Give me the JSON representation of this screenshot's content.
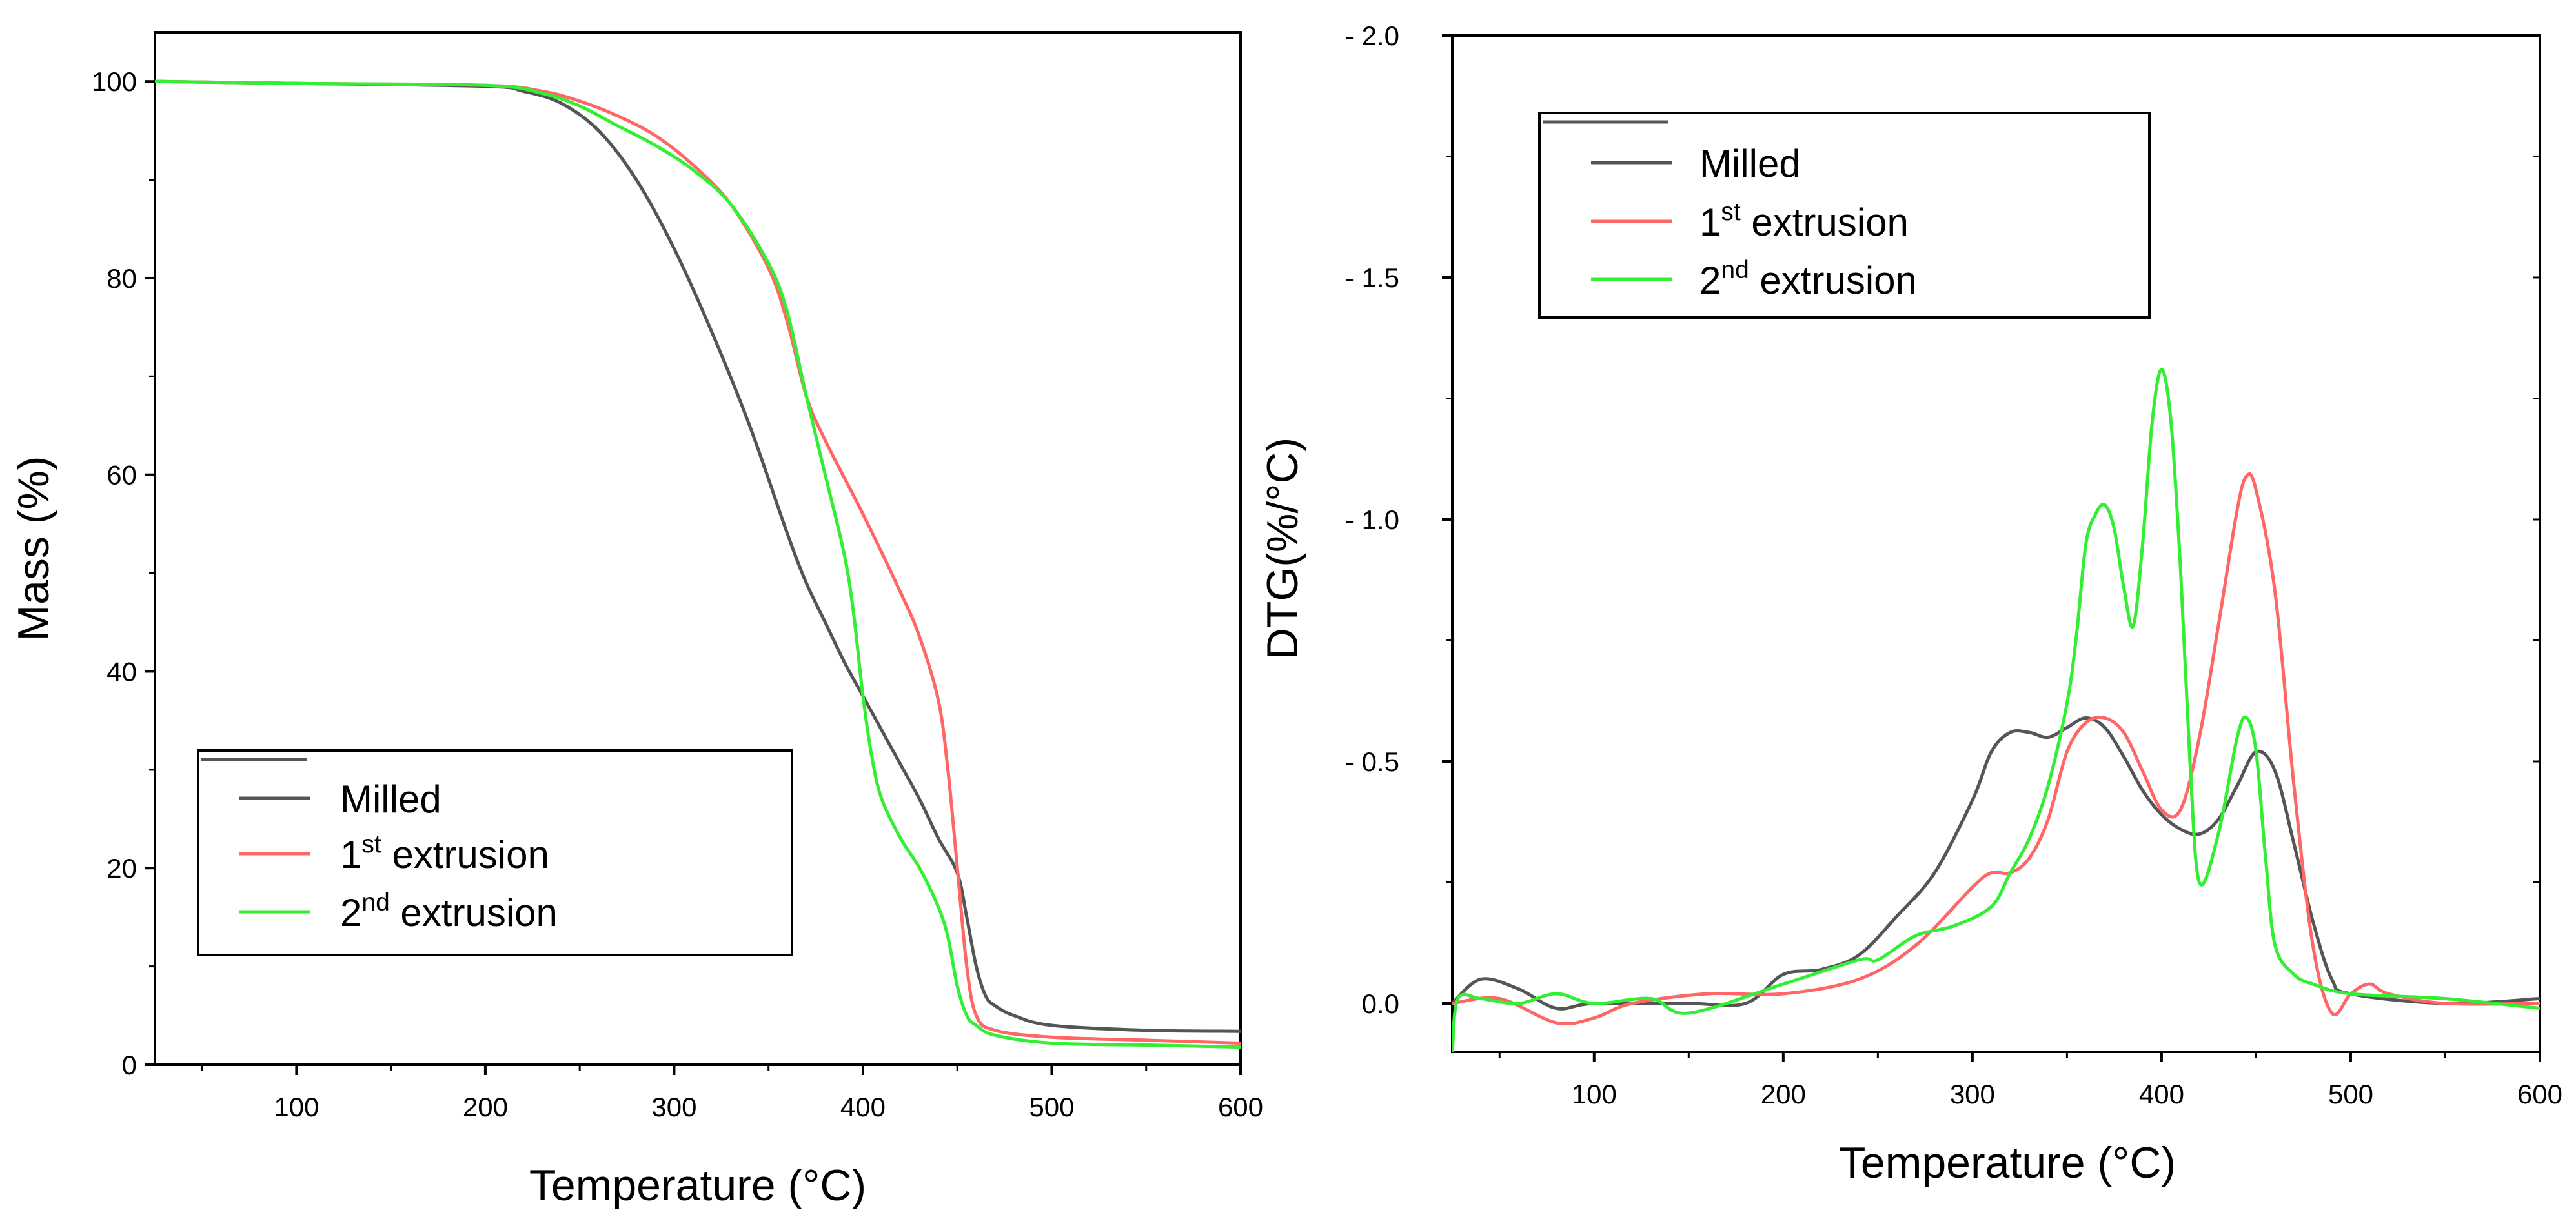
{
  "figure": {
    "background": "#ffffff",
    "axis_color": "#000000"
  },
  "chart_data": [
    {
      "type": "line",
      "id": "tga",
      "xlabel": "Temperature  (°C)",
      "ylabel": "Mass  (%)",
      "xlim": [
        25,
        600
      ],
      "ylim": [
        0,
        105
      ],
      "grid": false,
      "y_reversed": false,
      "xticks": [
        100,
        200,
        300,
        400,
        500,
        600
      ],
      "xtick_labels": [
        "100",
        "200",
        "300",
        "400",
        "500",
        "600"
      ],
      "xminor": [
        50,
        150,
        250,
        350,
        450,
        550
      ],
      "yticks": [
        0,
        20,
        40,
        60,
        80,
        100
      ],
      "ytick_labels": [
        "0",
        "20",
        "40",
        "60",
        "80",
        "100"
      ],
      "yminor": [
        10,
        30,
        50,
        70,
        90
      ],
      "legend": {
        "position": "bottom-left",
        "entries": [
          {
            "label": "Milled",
            "sup": "",
            "rest": ""
          },
          {
            "label": "1",
            "sup": "st",
            "rest": " extrusion"
          },
          {
            "label": "2",
            "sup": "nd",
            "rest": " extrusion"
          }
        ]
      },
      "series": [
        {
          "name": "Milled",
          "color": "#555555",
          "x": [
            25,
            100,
            200,
            220,
            240,
            260,
            280,
            300,
            320,
            340,
            360,
            370,
            380,
            390,
            400,
            410,
            420,
            430,
            440,
            450,
            455,
            460,
            465,
            470,
            480,
            500,
            550,
            600
          ],
          "y": [
            100,
            99.8,
            99.5,
            99.0,
            97.8,
            95.0,
            90.0,
            83.0,
            74.5,
            65.0,
            54.0,
            49.0,
            45.0,
            41.0,
            37.5,
            34.0,
            30.5,
            27.0,
            23.0,
            19.5,
            15.0,
            10.0,
            7.0,
            6.0,
            5.0,
            4.0,
            3.5,
            3.4
          ]
        },
        {
          "name": "1st extrusion",
          "color": "#ff6666",
          "x": [
            25,
            100,
            200,
            230,
            250,
            270,
            290,
            310,
            330,
            350,
            360,
            370,
            380,
            400,
            420,
            430,
            440,
            445,
            450,
            455,
            460,
            470,
            500,
            550,
            600
          ],
          "y": [
            100,
            99.8,
            99.6,
            99.0,
            98.0,
            96.5,
            94.5,
            91.5,
            87.5,
            81.0,
            75.5,
            68.0,
            63.5,
            56.0,
            48.0,
            43.5,
            37.0,
            30.0,
            20.0,
            10.0,
            5.0,
            3.5,
            2.8,
            2.5,
            2.2
          ]
        },
        {
          "name": "2nd extrusion",
          "color": "#33ee33",
          "x": [
            25,
            100,
            200,
            230,
            250,
            270,
            290,
            310,
            330,
            350,
            360,
            370,
            380,
            390,
            395,
            400,
            405,
            410,
            420,
            430,
            440,
            445,
            450,
            455,
            460,
            470,
            500,
            550,
            600
          ],
          "y": [
            100,
            99.8,
            99.6,
            98.8,
            97.5,
            95.5,
            93.5,
            91.0,
            87.5,
            81.5,
            76.5,
            68.0,
            60.0,
            52.0,
            46.0,
            37.5,
            31.0,
            27.0,
            23.0,
            20.0,
            16.0,
            13.0,
            8.0,
            5.0,
            4.0,
            3.0,
            2.2,
            2.0,
            1.8
          ]
        }
      ]
    },
    {
      "type": "line",
      "id": "dtg",
      "xlabel": "Temperature  (°C)",
      "ylabel": "DTG(%/°C)",
      "xlim": [
        25,
        600
      ],
      "ylim": [
        0.1,
        -2.0
      ],
      "grid": false,
      "y_reversed": true,
      "xticks": [
        100,
        200,
        300,
        400,
        500,
        600
      ],
      "xtick_labels": [
        "100",
        "200",
        "300",
        "400",
        "500",
        "600"
      ],
      "xminor": [
        50,
        150,
        250,
        350,
        450,
        550
      ],
      "yticks": [
        0.0,
        -0.5,
        -1.0,
        -1.5,
        -2.0
      ],
      "ytick_labels": [
        "0.0",
        "- 0.5",
        "- 1.0",
        "- 1.5",
        "- 2.0"
      ],
      "yminor": [
        -0.25,
        -0.75,
        -1.25,
        -1.75
      ],
      "legend": {
        "position": "top-left",
        "entries": [
          {
            "label": "Milled",
            "sup": "",
            "rest": ""
          },
          {
            "label": "1",
            "sup": "st",
            "rest": " extrusion"
          },
          {
            "label": "2",
            "sup": "nd",
            "rest": " extrusion"
          }
        ]
      },
      "series": [
        {
          "name": "Milled",
          "color": "#555555",
          "x": [
            25,
            40,
            60,
            80,
            100,
            150,
            180,
            200,
            220,
            240,
            260,
            280,
            300,
            310,
            320,
            330,
            340,
            350,
            360,
            370,
            380,
            390,
            400,
            410,
            420,
            430,
            440,
            450,
            460,
            470,
            480,
            490,
            500,
            550,
            600
          ],
          "y": [
            0.0,
            -0.05,
            -0.03,
            0.01,
            0.0,
            0.0,
            0.0,
            -0.06,
            -0.07,
            -0.1,
            -0.18,
            -0.27,
            -0.42,
            -0.52,
            -0.56,
            -0.56,
            -0.55,
            -0.57,
            -0.59,
            -0.57,
            -0.51,
            -0.44,
            -0.39,
            -0.36,
            -0.35,
            -0.38,
            -0.45,
            -0.52,
            -0.48,
            -0.33,
            -0.17,
            -0.05,
            -0.02,
            0.0,
            -0.01
          ]
        },
        {
          "name": "1st extrusion",
          "color": "#ff6666",
          "x": [
            25,
            50,
            80,
            100,
            120,
            160,
            200,
            240,
            270,
            300,
            310,
            320,
            330,
            340,
            350,
            360,
            370,
            380,
            390,
            400,
            410,
            420,
            430,
            440,
            445,
            450,
            460,
            470,
            480,
            490,
            500,
            510,
            520,
            550,
            600
          ],
          "y": [
            0.0,
            -0.01,
            0.04,
            0.03,
            0.0,
            -0.02,
            -0.02,
            -0.05,
            -0.12,
            -0.24,
            -0.27,
            -0.27,
            -0.3,
            -0.38,
            -0.52,
            -0.58,
            -0.59,
            -0.56,
            -0.48,
            -0.4,
            -0.4,
            -0.55,
            -0.78,
            -1.02,
            -1.09,
            -1.06,
            -0.85,
            -0.45,
            -0.12,
            0.02,
            -0.02,
            -0.04,
            -0.02,
            0.0,
            0.0
          ]
        },
        {
          "name": "2nd extrusion",
          "color": "#33ee33",
          "x": [
            25,
            28,
            40,
            60,
            80,
            100,
            130,
            150,
            200,
            240,
            250,
            270,
            290,
            310,
            320,
            330,
            340,
            350,
            355,
            360,
            365,
            370,
            375,
            380,
            385,
            390,
            395,
            400,
            405,
            410,
            415,
            420,
            430,
            440,
            445,
            450,
            455,
            460,
            470,
            480,
            500,
            550,
            600
          ],
          "y": [
            0.1,
            -0.01,
            -0.01,
            0.0,
            -0.02,
            0.0,
            -0.01,
            0.02,
            -0.04,
            -0.09,
            -0.09,
            -0.14,
            -0.16,
            -0.2,
            -0.27,
            -0.34,
            -0.45,
            -0.62,
            -0.76,
            -0.95,
            -1.01,
            -1.03,
            -0.98,
            -0.86,
            -0.78,
            -0.95,
            -1.2,
            -1.31,
            -1.2,
            -0.9,
            -0.5,
            -0.25,
            -0.35,
            -0.55,
            -0.59,
            -0.52,
            -0.3,
            -0.12,
            -0.06,
            -0.04,
            -0.02,
            -0.01,
            0.01
          ]
        }
      ]
    }
  ]
}
